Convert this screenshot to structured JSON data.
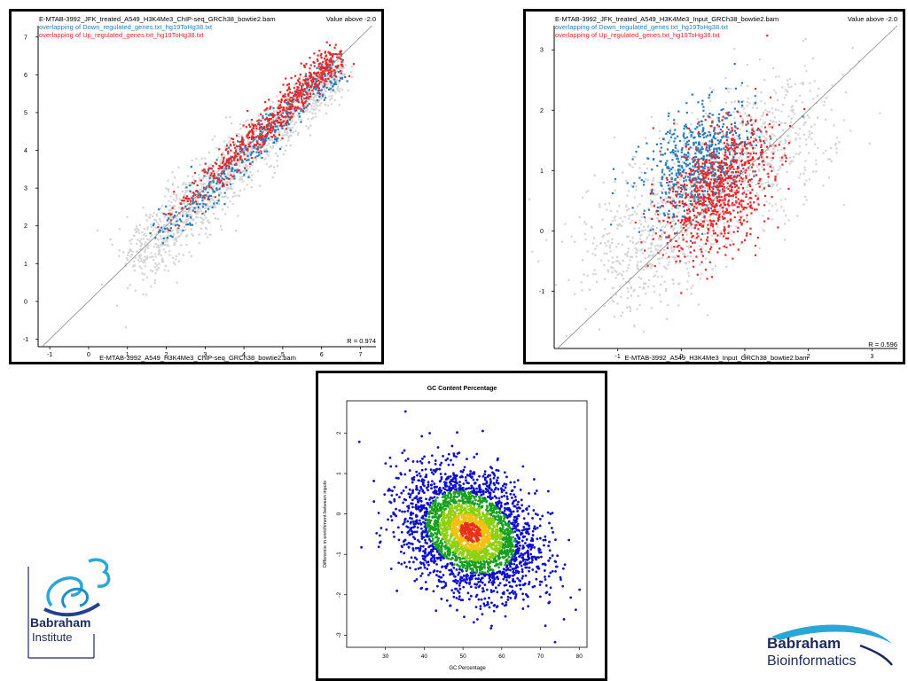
{
  "chart_data": [
    {
      "type": "scatter",
      "title_lines": [
        "E-MTAB-3992_JFK_treated_A549_H3K4Me3_ChIP-seq_GRCh38_bowtie2.bam",
        "overlapping of Down_regulated_genes.txt_hg19ToHg38.txt",
        "overlapping of Up_regulated_genes.txt_hg19ToHg38.txt"
      ],
      "value_note": "Value above -2.0",
      "xlabel": "E-MTAB-3992_A549_H3K4Me3_ChIP-seq_GRCh38_bowtie2.bam",
      "r_text": "R = 0.974",
      "xlim": [
        -1.3,
        7.4
      ],
      "ylim": [
        -1.2,
        7.3
      ],
      "xticks": [
        -1,
        0,
        1,
        2,
        3,
        4,
        5,
        6,
        7
      ],
      "yticks": [
        -1,
        0,
        1,
        2,
        3,
        4,
        5,
        6,
        7
      ],
      "series": [
        {
          "name": "overlapping of Down_regulated_genes.txt_hg19ToHg38.txt",
          "color": "#2b7bba"
        },
        {
          "name": "overlapping of Up_regulated_genes.txt_hg19ToHg38.txt",
          "color": "#e8262a"
        }
      ],
      "background_color": "#d4d4d4",
      "diagonal": true,
      "grid": false
    },
    {
      "type": "scatter",
      "title_lines": [
        "E-MTAB-3992_JFK_treated_A549_H3K4Me3_Input_GRCh38_bowtie2.bam",
        "overlapping of Down_regulated_genes.txt_hg19ToHg38.txt",
        "overlapping of Up_regulated_genes.txt_hg19ToHg38.txt"
      ],
      "value_note": "Value above -2.0",
      "xlabel": "E-MTAB-3992_A549_H3K4Me3_Input_GRCh38_bowtie2.bam",
      "r_text": "R = 0.596",
      "xlim": [
        -2.0,
        3.4
      ],
      "ylim": [
        -1.95,
        3.4
      ],
      "xticks": [
        -1,
        0,
        1,
        2,
        3
      ],
      "yticks": [
        -1,
        0,
        1,
        2,
        3
      ],
      "series": [
        {
          "name": "overlapping of Down_regulated_genes.txt_hg19ToHg38.txt",
          "color": "#2b7bba"
        },
        {
          "name": "overlapping of Up_regulated_genes.txt_hg19ToHg38.txt",
          "color": "#e8262a"
        }
      ],
      "background_color": "#d4d4d4",
      "diagonal": true,
      "grid": false
    },
    {
      "type": "scatter",
      "title": "GC Content Percentage",
      "xlabel": "GC Percentage",
      "ylabel": "Difference in enrichment between inputs",
      "xlim": [
        20,
        82
      ],
      "ylim": [
        -3.3,
        2.8
      ],
      "xticks": [
        30,
        40,
        50,
        60,
        70,
        80
      ],
      "yticks": [
        -3,
        -2,
        -1,
        0,
        1,
        2
      ],
      "density_colors": [
        "#1010c8",
        "#18a020",
        "#8fd010",
        "#f2c010",
        "#e83018"
      ],
      "center": {
        "x": 52,
        "y": -0.45
      },
      "grid": false
    }
  ],
  "logos": {
    "institute": {
      "line1": "Babraham",
      "line2": "Institute"
    },
    "bioinformatics": {
      "line1": "Babraham",
      "line2": "Bioinformatics"
    }
  }
}
